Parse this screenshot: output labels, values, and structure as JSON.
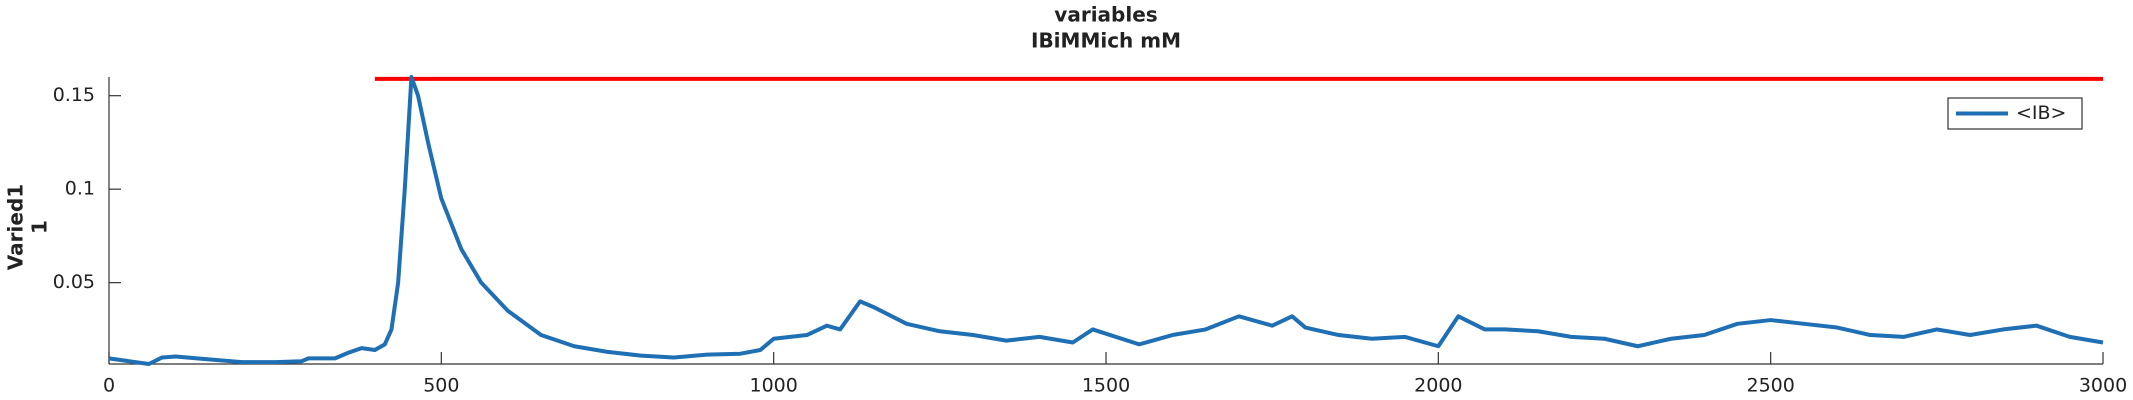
{
  "chart_data": {
    "type": "line",
    "title": "variables",
    "subtitle": "IBiMMich mM",
    "ylabel": [
      "Varied1",
      "1"
    ],
    "x": [
      0,
      30,
      60,
      80,
      100,
      150,
      200,
      250,
      290,
      300,
      340,
      360,
      380,
      400,
      415,
      425,
      435,
      445,
      455,
      465,
      480,
      500,
      530,
      560,
      600,
      650,
      700,
      750,
      800,
      850,
      900,
      950,
      980,
      1000,
      1050,
      1080,
      1100,
      1130,
      1150,
      1200,
      1250,
      1300,
      1350,
      1400,
      1450,
      1480,
      1550,
      1600,
      1650,
      1700,
      1750,
      1780,
      1800,
      1850,
      1900,
      1950,
      2000,
      2030,
      2070,
      2100,
      2150,
      2200,
      2250,
      2300,
      2350,
      2400,
      2450,
      2500,
      2550,
      2600,
      2650,
      2700,
      2750,
      2800,
      2850,
      2900,
      2950,
      3000
    ],
    "series": [
      {
        "name": "<IB>",
        "color": "#1f6fb4",
        "values": [
          0.0095,
          0.008,
          0.0065,
          0.01,
          0.0105,
          0.009,
          0.0075,
          0.0075,
          0.008,
          0.0095,
          0.0095,
          0.0125,
          0.015,
          0.014,
          0.017,
          0.025,
          0.05,
          0.1,
          0.16,
          0.15,
          0.125,
          0.095,
          0.068,
          0.05,
          0.035,
          0.022,
          0.016,
          0.013,
          0.011,
          0.01,
          0.0115,
          0.012,
          0.014,
          0.02,
          0.022,
          0.027,
          0.025,
          0.04,
          0.037,
          0.028,
          0.024,
          0.022,
          0.019,
          0.021,
          0.018,
          0.025,
          0.017,
          0.022,
          0.025,
          0.032,
          0.027,
          0.032,
          0.026,
          0.022,
          0.02,
          0.021,
          0.016,
          0.032,
          0.025,
          0.025,
          0.024,
          0.021,
          0.02,
          0.016,
          0.02,
          0.022,
          0.028,
          0.03,
          0.028,
          0.026,
          0.022,
          0.021,
          0.025,
          0.022,
          0.025,
          0.027,
          0.021,
          0.018
        ]
      }
    ],
    "reference_line": {
      "color": "#ff0000",
      "x": [
        400,
        3000
      ],
      "values": [
        0.159,
        0.159
      ]
    },
    "xlim": [
      0,
      3000
    ],
    "xticks": [
      0,
      500,
      1000,
      1500,
      2000,
      2500,
      3000
    ],
    "ylim": [
      0.0065,
      0.16
    ],
    "yticks": [
      0.05,
      0.1,
      0.15
    ],
    "legend": "top-right"
  }
}
